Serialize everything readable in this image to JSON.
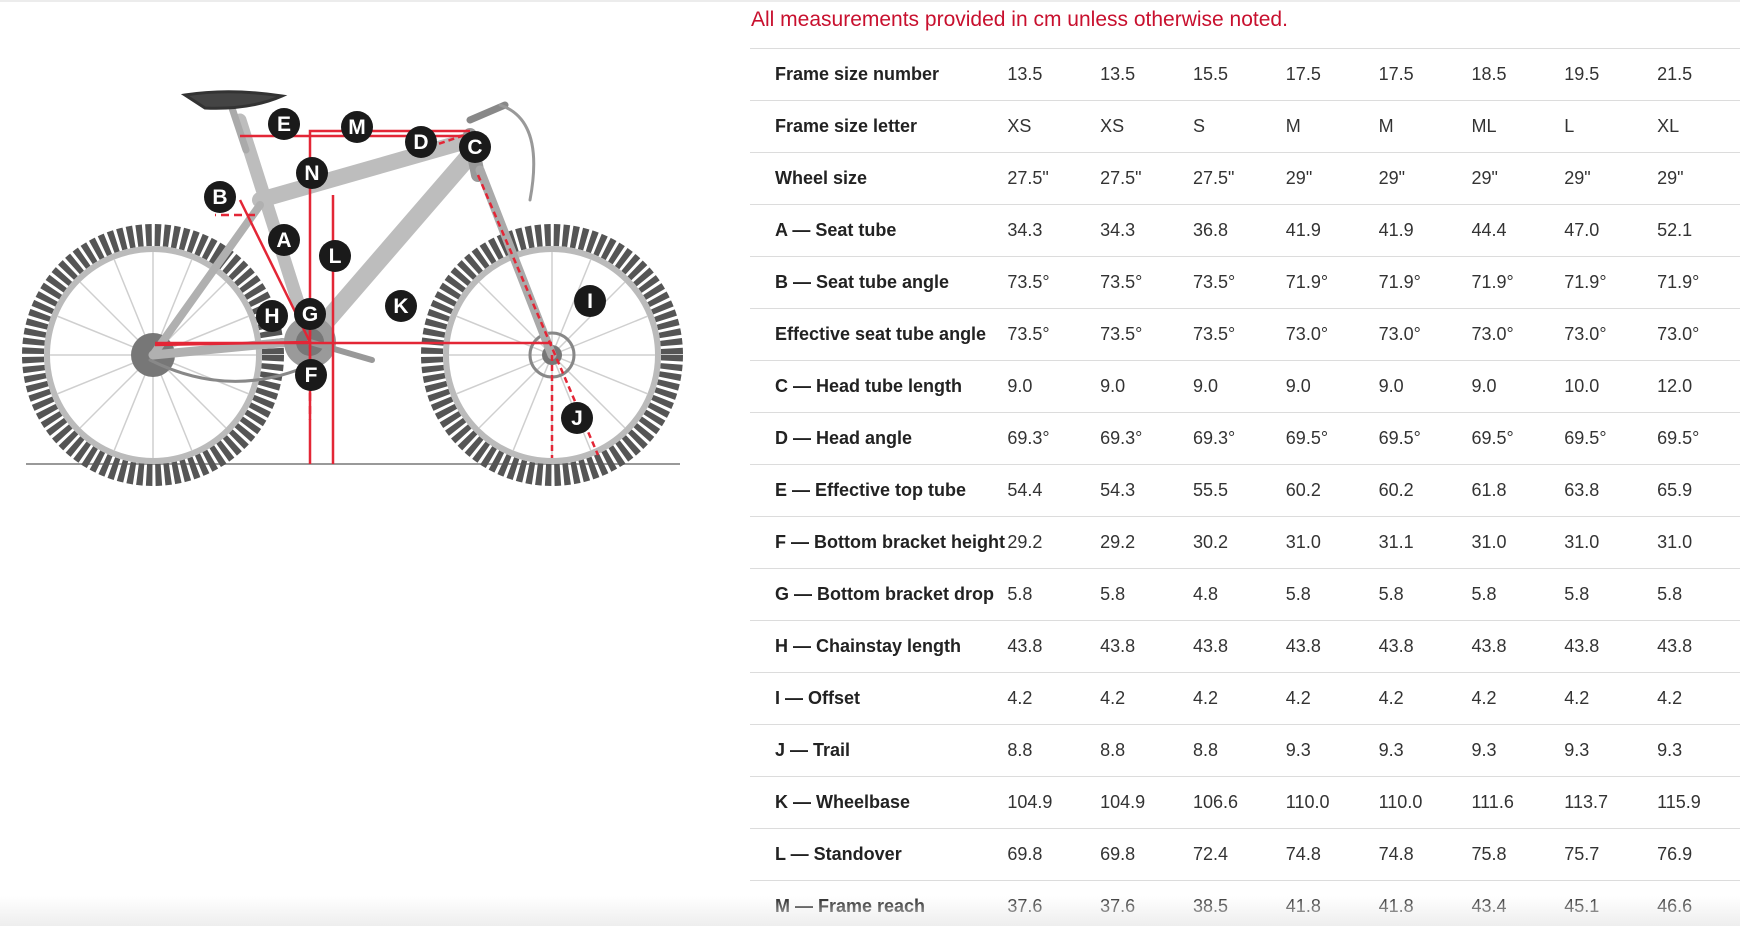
{
  "note": "All measurements provided in cm unless otherwise noted.",
  "diagram": {
    "labels": [
      "A",
      "B",
      "C",
      "D",
      "E",
      "F",
      "G",
      "H",
      "I",
      "J",
      "K",
      "L",
      "M",
      "N"
    ]
  },
  "geometry": {
    "rows": [
      {
        "label": "Frame size number",
        "values": [
          "13.5",
          "13.5",
          "15.5",
          "17.5",
          "17.5",
          "18.5",
          "19.5",
          "21.5"
        ]
      },
      {
        "label": "Frame size letter",
        "values": [
          "XS",
          "XS",
          "S",
          "M",
          "M",
          "ML",
          "L",
          "XL"
        ]
      },
      {
        "label": "Wheel size",
        "values": [
          "27.5\"",
          "27.5\"",
          "27.5\"",
          "29\"",
          "29\"",
          "29\"",
          "29\"",
          "29\""
        ]
      },
      {
        "label": "A — Seat tube",
        "values": [
          "34.3",
          "34.3",
          "36.8",
          "41.9",
          "41.9",
          "44.4",
          "47.0",
          "52.1"
        ]
      },
      {
        "label": "B — Seat tube angle",
        "values": [
          "73.5°",
          "73.5°",
          "73.5°",
          "71.9°",
          "71.9°",
          "71.9°",
          "71.9°",
          "71.9°"
        ]
      },
      {
        "label": "Effective seat tube angle",
        "values": [
          "73.5°",
          "73.5°",
          "73.5°",
          "73.0°",
          "73.0°",
          "73.0°",
          "73.0°",
          "73.0°"
        ]
      },
      {
        "label": "C — Head tube length",
        "values": [
          "9.0",
          "9.0",
          "9.0",
          "9.0",
          "9.0",
          "9.0",
          "10.0",
          "12.0"
        ]
      },
      {
        "label": "D — Head angle",
        "values": [
          "69.3°",
          "69.3°",
          "69.3°",
          "69.5°",
          "69.5°",
          "69.5°",
          "69.5°",
          "69.5°"
        ]
      },
      {
        "label": "E — Effective top tube",
        "values": [
          "54.4",
          "54.3",
          "55.5",
          "60.2",
          "60.2",
          "61.8",
          "63.8",
          "65.9"
        ]
      },
      {
        "label": "F — Bottom bracket height",
        "values": [
          "29.2",
          "29.2",
          "30.2",
          "31.0",
          "31.1",
          "31.0",
          "31.0",
          "31.0"
        ]
      },
      {
        "label": "G — Bottom bracket drop",
        "values": [
          "5.8",
          "5.8",
          "4.8",
          "5.8",
          "5.8",
          "5.8",
          "5.8",
          "5.8"
        ]
      },
      {
        "label": "H — Chainstay length",
        "values": [
          "43.8",
          "43.8",
          "43.8",
          "43.8",
          "43.8",
          "43.8",
          "43.8",
          "43.8"
        ]
      },
      {
        "label": "I — Offset",
        "values": [
          "4.2",
          "4.2",
          "4.2",
          "4.2",
          "4.2",
          "4.2",
          "4.2",
          "4.2"
        ]
      },
      {
        "label": "J — Trail",
        "values": [
          "8.8",
          "8.8",
          "8.8",
          "9.3",
          "9.3",
          "9.3",
          "9.3",
          "9.3"
        ]
      },
      {
        "label": "K — Wheelbase",
        "values": [
          "104.9",
          "104.9",
          "106.6",
          "110.0",
          "110.0",
          "111.6",
          "113.7",
          "115.9"
        ]
      },
      {
        "label": "L — Standover",
        "values": [
          "69.8",
          "69.8",
          "72.4",
          "74.8",
          "74.8",
          "75.8",
          "75.7",
          "76.9"
        ]
      },
      {
        "label": "M — Frame reach",
        "values": [
          "37.6",
          "37.6",
          "38.5",
          "41.8",
          "41.8",
          "43.4",
          "45.1",
          "46.6"
        ]
      }
    ]
  },
  "colors": {
    "accent": "#c8102e",
    "marker": "#1a1a1a",
    "frame": "#b5b5b5",
    "tire": "#555555"
  }
}
